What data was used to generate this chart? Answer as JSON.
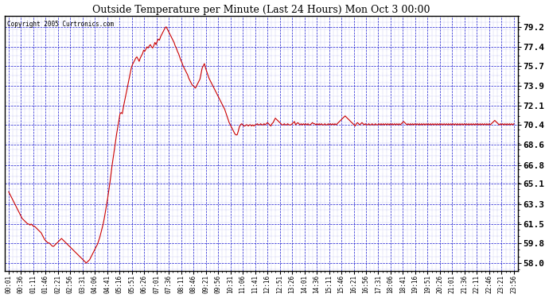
{
  "title": "Outside Temperature per Minute (Last 24 Hours) Mon Oct 3 00:00",
  "copyright": "Copyright 2005 Curtronics.com",
  "yticks": [
    58.0,
    59.8,
    61.5,
    63.3,
    65.1,
    66.8,
    68.6,
    70.4,
    72.1,
    73.9,
    75.7,
    77.4,
    79.2
  ],
  "ylim": [
    57.3,
    80.2
  ],
  "line_color": "#cc0000",
  "background_color": "#ffffff",
  "grid_color": "#0000cc",
  "border_color": "#000000",
  "xtick_labels": [
    "00:01",
    "00:36",
    "01:11",
    "01:46",
    "02:21",
    "02:56",
    "03:31",
    "04:06",
    "04:41",
    "05:16",
    "05:51",
    "06:26",
    "07:01",
    "07:36",
    "08:11",
    "08:46",
    "09:21",
    "09:56",
    "10:31",
    "11:06",
    "11:41",
    "12:16",
    "12:51",
    "13:26",
    "14:01",
    "14:36",
    "15:11",
    "15:46",
    "16:21",
    "16:56",
    "17:31",
    "18:06",
    "18:41",
    "19:16",
    "19:51",
    "20:26",
    "21:01",
    "21:36",
    "22:11",
    "22:46",
    "23:21",
    "23:56"
  ],
  "temperature_data": [
    64.4,
    64.2,
    64.0,
    63.8,
    63.6,
    63.4,
    63.2,
    63.0,
    62.8,
    62.6,
    62.4,
    62.2,
    62.0,
    61.9,
    61.8,
    61.7,
    61.6,
    61.5,
    61.5,
    61.4,
    61.5,
    61.4,
    61.3,
    61.3,
    61.2,
    61.1,
    61.0,
    60.9,
    60.8,
    60.7,
    60.5,
    60.3,
    60.1,
    60.0,
    59.9,
    59.8,
    59.8,
    59.7,
    59.6,
    59.5,
    59.5,
    59.6,
    59.7,
    59.8,
    59.9,
    60.0,
    60.1,
    60.2,
    60.1,
    60.0,
    59.9,
    59.8,
    59.7,
    59.6,
    59.5,
    59.4,
    59.3,
    59.2,
    59.1,
    59.0,
    58.9,
    58.8,
    58.7,
    58.6,
    58.5,
    58.4,
    58.3,
    58.2,
    58.1,
    58.0,
    58.1,
    58.2,
    58.3,
    58.5,
    58.7,
    58.9,
    59.1,
    59.3,
    59.5,
    59.7,
    60.0,
    60.3,
    60.7,
    61.1,
    61.5,
    62.0,
    62.6,
    63.2,
    63.8,
    64.5,
    65.2,
    66.0,
    66.8,
    67.5,
    68.2,
    68.9,
    69.6,
    70.2,
    70.8,
    71.4,
    71.5,
    71.4,
    72.0,
    72.5,
    73.0,
    73.5,
    74.0,
    74.5,
    75.0,
    75.5,
    75.8,
    76.0,
    76.2,
    76.4,
    76.5,
    76.3,
    76.1,
    76.4,
    76.6,
    76.8,
    77.1,
    77.0,
    77.2,
    77.4,
    77.3,
    77.5,
    77.6,
    77.4,
    77.3,
    77.5,
    77.8,
    77.6,
    77.9,
    78.1,
    78.0,
    78.3,
    78.5,
    78.7,
    78.9,
    79.1,
    79.2,
    79.0,
    78.8,
    78.6,
    78.4,
    78.2,
    78.0,
    77.8,
    77.5,
    77.3,
    77.0,
    76.8,
    76.5,
    76.2,
    76.0,
    75.7,
    75.5,
    75.3,
    75.1,
    74.9,
    74.6,
    74.4,
    74.2,
    74.0,
    73.9,
    73.8,
    73.7,
    73.9,
    74.1,
    74.3,
    74.5,
    75.0,
    75.5,
    75.7,
    75.9,
    75.5,
    75.2,
    74.9,
    74.6,
    74.4,
    74.2,
    74.0,
    73.8,
    73.6,
    73.4,
    73.2,
    73.0,
    72.8,
    72.6,
    72.4,
    72.2,
    72.0,
    71.8,
    71.5,
    71.2,
    70.9,
    70.6,
    70.4,
    70.2,
    70.0,
    69.8,
    69.6,
    69.5,
    69.5,
    69.8,
    70.2,
    70.4,
    70.5,
    70.4,
    70.3,
    70.3,
    70.4,
    70.4,
    70.3,
    70.4,
    70.4,
    70.3,
    70.4,
    70.3,
    70.4,
    70.4,
    70.5,
    70.4,
    70.4,
    70.5,
    70.4,
    70.4,
    70.5,
    70.4,
    70.5,
    70.6,
    70.5,
    70.4,
    70.3,
    70.5,
    70.6,
    70.8,
    71.0,
    70.9,
    70.8,
    70.7,
    70.6,
    70.5,
    70.4,
    70.4,
    70.5,
    70.4,
    70.4,
    70.5,
    70.4,
    70.4,
    70.4,
    70.5,
    70.6,
    70.7,
    70.4,
    70.5,
    70.6,
    70.5,
    70.4,
    70.5,
    70.4,
    70.5,
    70.4,
    70.5,
    70.4,
    70.5,
    70.4,
    70.4,
    70.5,
    70.6,
    70.5,
    70.5,
    70.4,
    70.5,
    70.4,
    70.5,
    70.4,
    70.5,
    70.4,
    70.4,
    70.5,
    70.4,
    70.4,
    70.5,
    70.4,
    70.5,
    70.4,
    70.5,
    70.4,
    70.5,
    70.4,
    70.5,
    70.6,
    70.7,
    70.8,
    70.9,
    71.0,
    71.1,
    71.2,
    71.1,
    71.0,
    70.9,
    70.8,
    70.7,
    70.6,
    70.5,
    70.4,
    70.3,
    70.5,
    70.6,
    70.5,
    70.4,
    70.5,
    70.6,
    70.5,
    70.4,
    70.5,
    70.4,
    70.4,
    70.5,
    70.4,
    70.4,
    70.5,
    70.4,
    70.4,
    70.5,
    70.4,
    70.4,
    70.5,
    70.4,
    70.5,
    70.4,
    70.5,
    70.4,
    70.5,
    70.4,
    70.5,
    70.4,
    70.5,
    70.4,
    70.5,
    70.4,
    70.5,
    70.4,
    70.5,
    70.4,
    70.5,
    70.4,
    70.5,
    70.6,
    70.7,
    70.6,
    70.5,
    70.4,
    70.5,
    70.4,
    70.5,
    70.4,
    70.5,
    70.4,
    70.5,
    70.4,
    70.5,
    70.4,
    70.5,
    70.4,
    70.5,
    70.4,
    70.5,
    70.4,
    70.5,
    70.4,
    70.5,
    70.4,
    70.5,
    70.4,
    70.5,
    70.4,
    70.5,
    70.4,
    70.5,
    70.4,
    70.5,
    70.4,
    70.5,
    70.4,
    70.5,
    70.4,
    70.5,
    70.4,
    70.5,
    70.4,
    70.5,
    70.4,
    70.5,
    70.4,
    70.5,
    70.4,
    70.5,
    70.4,
    70.5,
    70.4,
    70.5,
    70.4,
    70.5,
    70.4,
    70.5,
    70.4,
    70.5,
    70.4,
    70.5,
    70.4,
    70.5,
    70.4,
    70.5,
    70.4,
    70.5,
    70.4,
    70.5,
    70.4,
    70.5,
    70.4,
    70.5,
    70.4,
    70.5,
    70.4,
    70.5,
    70.4,
    70.5,
    70.6,
    70.7,
    70.8,
    70.7,
    70.6,
    70.5,
    70.4,
    70.5,
    70.4,
    70.5,
    70.4,
    70.5,
    70.4,
    70.5,
    70.4,
    70.5,
    70.4,
    70.5,
    70.4,
    70.5
  ]
}
